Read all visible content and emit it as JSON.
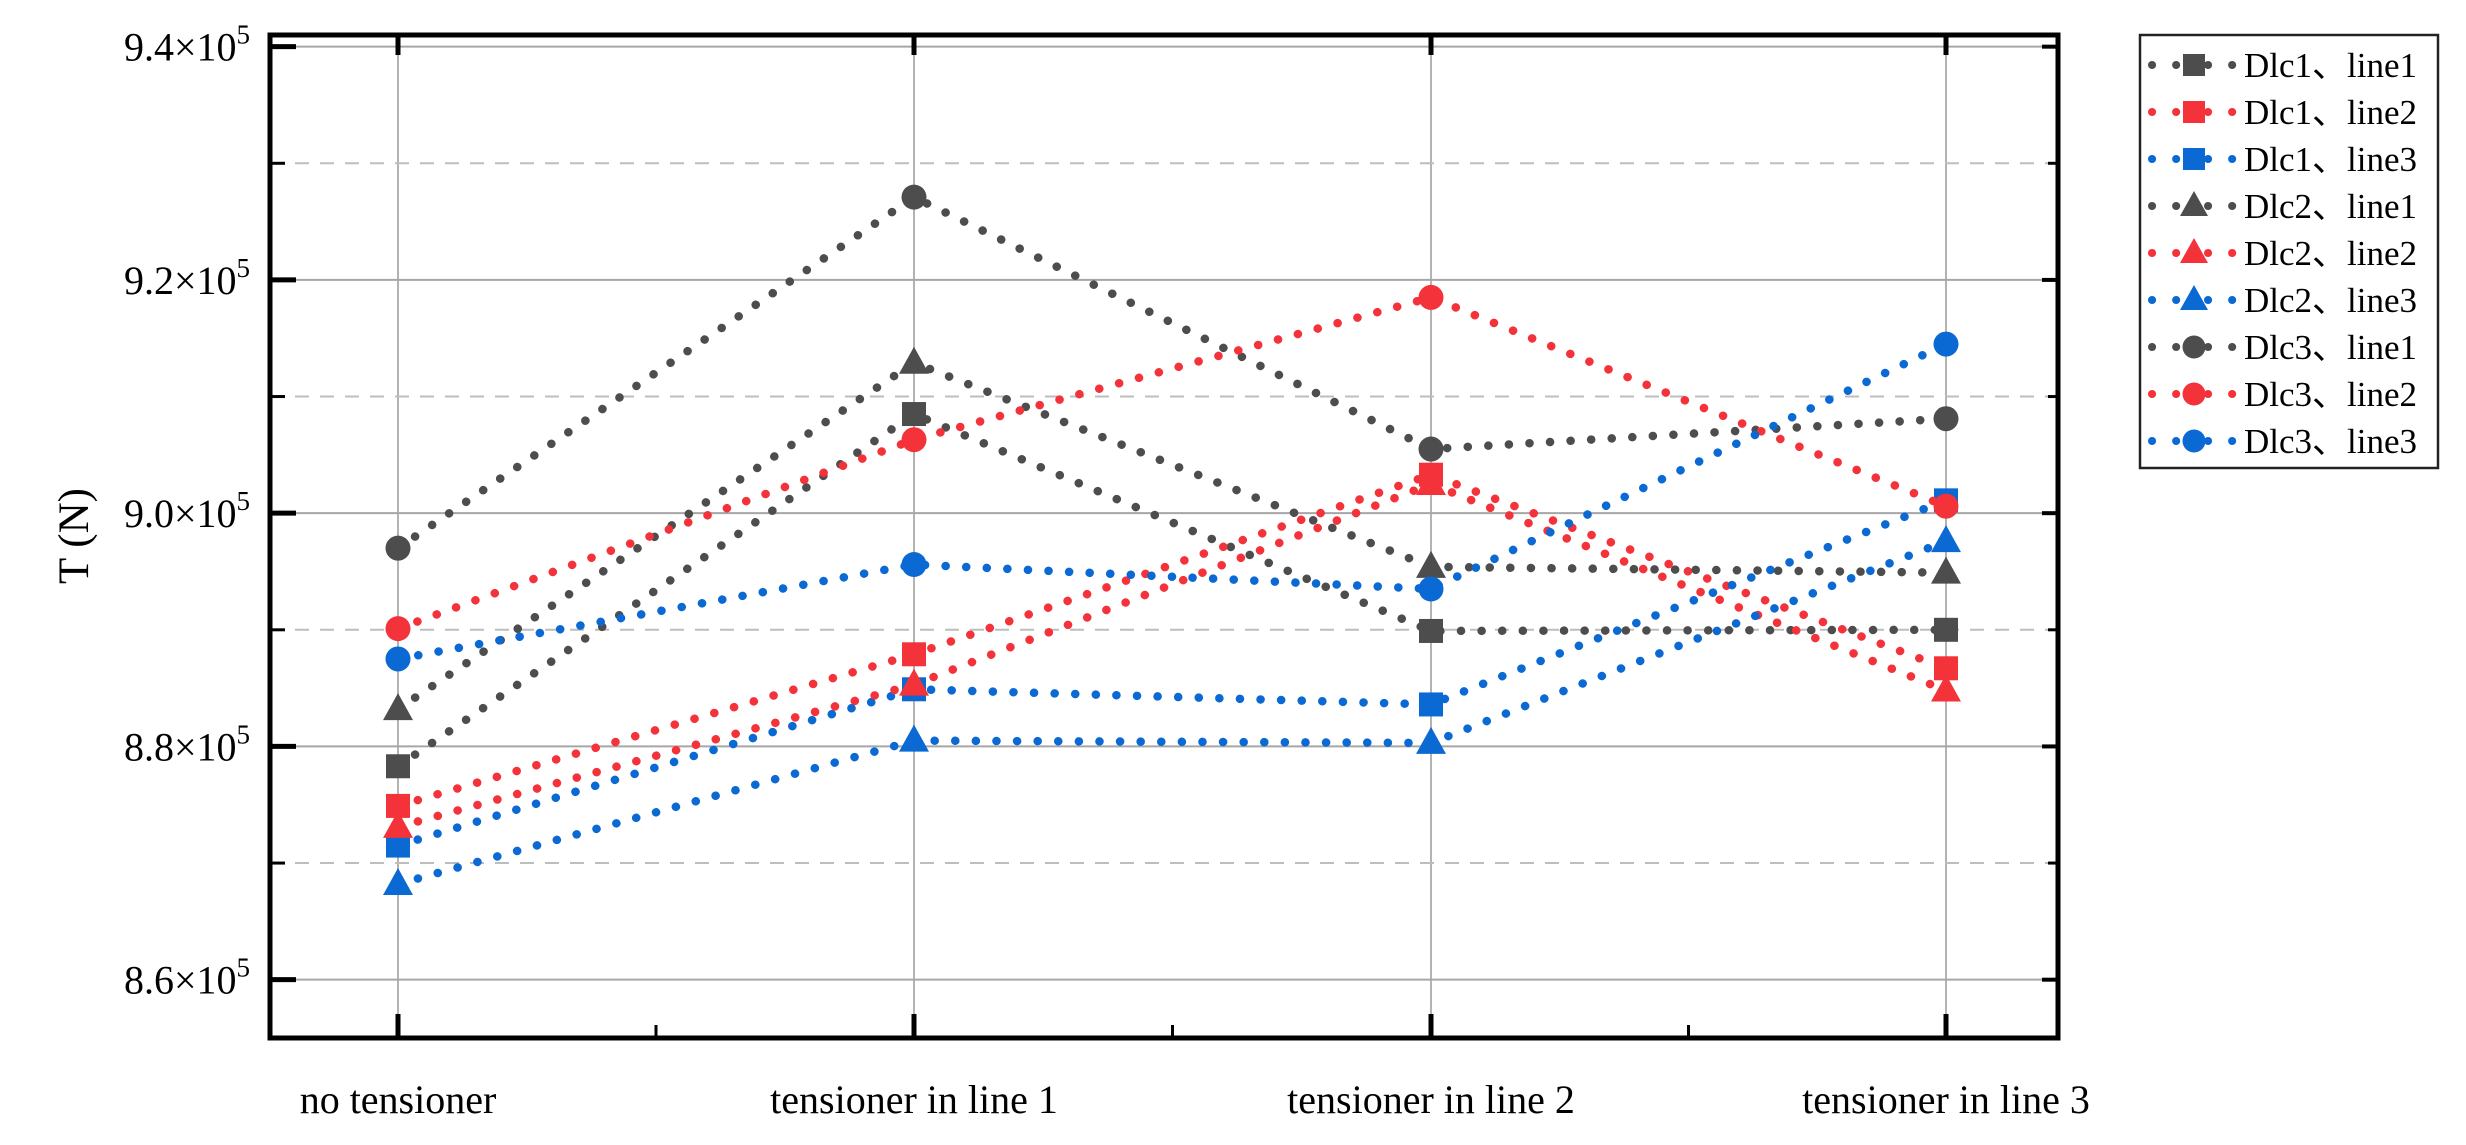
{
  "chart_data": {
    "type": "line",
    "title": "",
    "xlabel": "",
    "ylabel": "T (N)",
    "grid": true,
    "legend_position": "outside-top-right",
    "categories": [
      "no tensioner",
      "tensioner in line 1",
      "tensioner in line 2",
      "tensioner in line 3"
    ],
    "y_axis": {
      "min": 855000,
      "max": 941000,
      "major_ticks": [
        860000,
        880000,
        900000,
        920000,
        940000
      ],
      "major_tick_mantissas": [
        "8.6",
        "8.8",
        "9.0",
        "9.2",
        "9.4"
      ],
      "tick_label_times": "×10",
      "tick_label_exponent": "5",
      "minor_ticks": [
        870000,
        890000,
        910000,
        930000
      ]
    },
    "colors": {
      "gray": "#4d4d4d",
      "red": "#f4323a",
      "blue": "#0b69d4",
      "grid_major": "#a6a6a6",
      "grid_minor": "#bdbdbd",
      "grid_vertical": "#b3b3b3",
      "axis": "#000000"
    },
    "series": [
      {
        "name": "Dlc1、line1",
        "marker": "square",
        "color_key": "gray",
        "values": [
          878300,
          908500,
          889900,
          890000
        ]
      },
      {
        "name": "Dlc1、line2",
        "marker": "square",
        "color_key": "red",
        "values": [
          874900,
          887900,
          903300,
          886700
        ]
      },
      {
        "name": "Dlc1、line3",
        "marker": "square",
        "color_key": "blue",
        "values": [
          871500,
          884900,
          883600,
          901100
        ]
      },
      {
        "name": "Dlc2、line1",
        "marker": "triangle",
        "color_key": "gray",
        "values": [
          883200,
          912900,
          895400,
          894900
        ]
      },
      {
        "name": "Dlc2、line2",
        "marker": "triangle",
        "color_key": "red",
        "values": [
          873100,
          885300,
          902500,
          884800
        ]
      },
      {
        "name": "Dlc2、line3",
        "marker": "triangle",
        "color_key": "blue",
        "values": [
          868200,
          880500,
          880300,
          897600
        ]
      },
      {
        "name": "Dlc3、line1",
        "marker": "circle",
        "color_key": "gray",
        "values": [
          897000,
          927100,
          905500,
          908100
        ]
      },
      {
        "name": "Dlc3、line2",
        "marker": "circle",
        "color_key": "red",
        "values": [
          890100,
          906300,
          918500,
          900600
        ]
      },
      {
        "name": "Dlc3、line3",
        "marker": "circle",
        "color_key": "blue",
        "values": [
          887500,
          895600,
          893500,
          914500
        ]
      }
    ]
  }
}
